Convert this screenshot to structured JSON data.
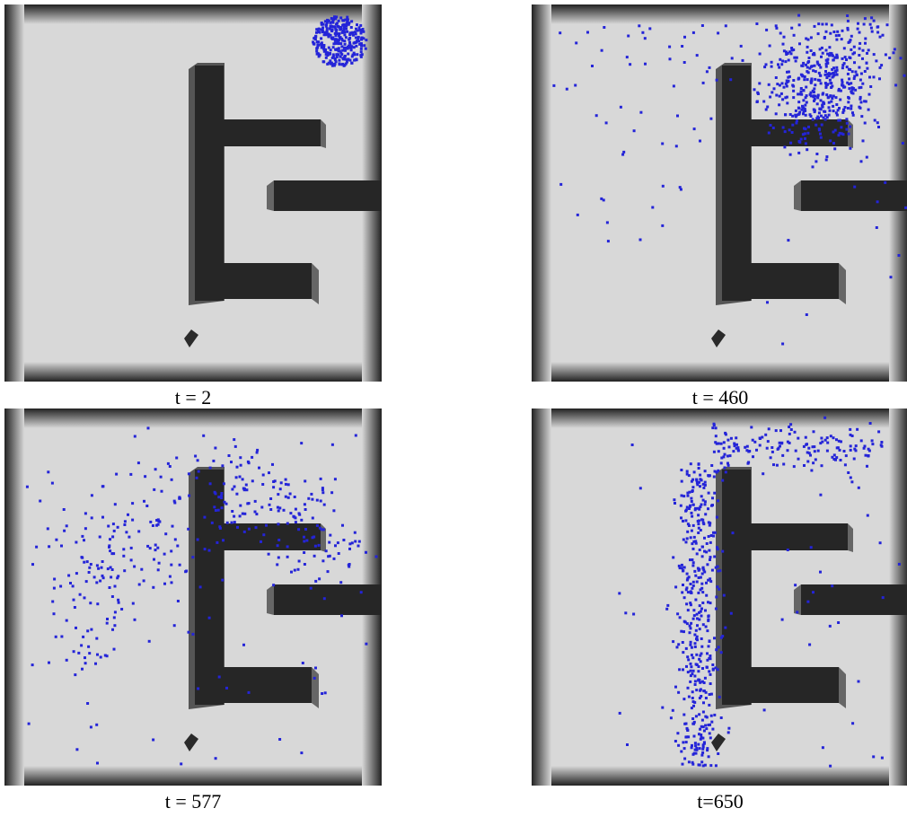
{
  "panels": [
    {
      "caption": "t = 2"
    },
    {
      "caption": "t = 460"
    },
    {
      "caption": "t = 577"
    },
    {
      "caption": "t=650"
    }
  ]
}
